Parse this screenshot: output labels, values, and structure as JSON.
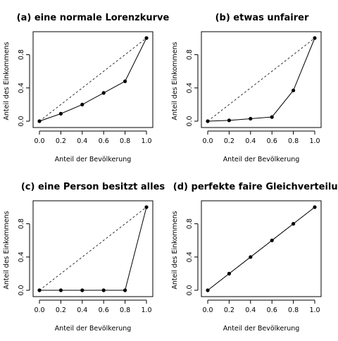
{
  "chart_data": [
    {
      "type": "line",
      "title": "(a) eine normale Lorenzkurve",
      "xlabel": "Anteil der Bevölkerung",
      "ylabel": "Anteil des Einkommens",
      "x": [
        0.0,
        0.2,
        0.4,
        0.6,
        0.8,
        1.0
      ],
      "y": [
        0.0,
        0.09,
        0.2,
        0.34,
        0.48,
        1.0
      ],
      "reference_line": {
        "x": [
          0.0,
          1.0
        ],
        "y": [
          0.0,
          1.0
        ],
        "style": "dashed"
      },
      "xlim": [
        0,
        1
      ],
      "ylim": [
        0,
        1
      ],
      "xticks": [
        "0.0",
        "0.2",
        "0.4",
        "0.6",
        "0.8",
        "1.0"
      ],
      "yticks": [
        "0.0",
        "0.4",
        "0.8"
      ],
      "grid": false
    },
    {
      "type": "line",
      "title": "(b) etwas unfairer",
      "xlabel": "Anteil der Bevölkerung",
      "ylabel": "Anteil des Einkommens",
      "x": [
        0.0,
        0.2,
        0.4,
        0.6,
        0.8,
        1.0
      ],
      "y": [
        0.0,
        0.01,
        0.03,
        0.05,
        0.37,
        1.0
      ],
      "reference_line": {
        "x": [
          0.0,
          1.0
        ],
        "y": [
          0.0,
          1.0
        ],
        "style": "dashed"
      },
      "xlim": [
        0,
        1
      ],
      "ylim": [
        0,
        1
      ],
      "xticks": [
        "0.0",
        "0.2",
        "0.4",
        "0.6",
        "0.8",
        "1.0"
      ],
      "yticks": [
        "0.0",
        "0.4",
        "0.8"
      ],
      "grid": false
    },
    {
      "type": "line",
      "title": "(c) eine Person besitzt alles",
      "xlabel": "Anteil der Bevölkerung",
      "ylabel": "Anteil des Einkommens",
      "x": [
        0.0,
        0.2,
        0.4,
        0.6,
        0.8,
        1.0
      ],
      "y": [
        0.0,
        0.0,
        0.0,
        0.0,
        0.0,
        1.0
      ],
      "reference_line": {
        "x": [
          0.0,
          1.0
        ],
        "y": [
          0.0,
          1.0
        ],
        "style": "dashed"
      },
      "xlim": [
        0,
        1
      ],
      "ylim": [
        0,
        1
      ],
      "xticks": [
        "0.0",
        "0.2",
        "0.4",
        "0.6",
        "0.8",
        "1.0"
      ],
      "yticks": [
        "0.0",
        "0.4",
        "0.8"
      ],
      "grid": false
    },
    {
      "type": "line",
      "title": "(d) perfekte faire Gleichverteilung",
      "xlabel": "Anteil der Bevölkerung",
      "ylabel": "Anteil des Einkommens",
      "x": [
        0.0,
        0.2,
        0.4,
        0.6,
        0.8,
        1.0
      ],
      "y": [
        0.0,
        0.2,
        0.4,
        0.6,
        0.8,
        1.0
      ],
      "reference_line": {
        "x": [
          0.0,
          1.0
        ],
        "y": [
          0.0,
          1.0
        ],
        "style": "dashed"
      },
      "xlim": [
        0,
        1
      ],
      "ylim": [
        0,
        1
      ],
      "xticks": [
        "0.0",
        "0.2",
        "0.4",
        "0.6",
        "0.8",
        "1.0"
      ],
      "yticks": [
        "0.0",
        "0.4",
        "0.8"
      ],
      "grid": false
    }
  ]
}
